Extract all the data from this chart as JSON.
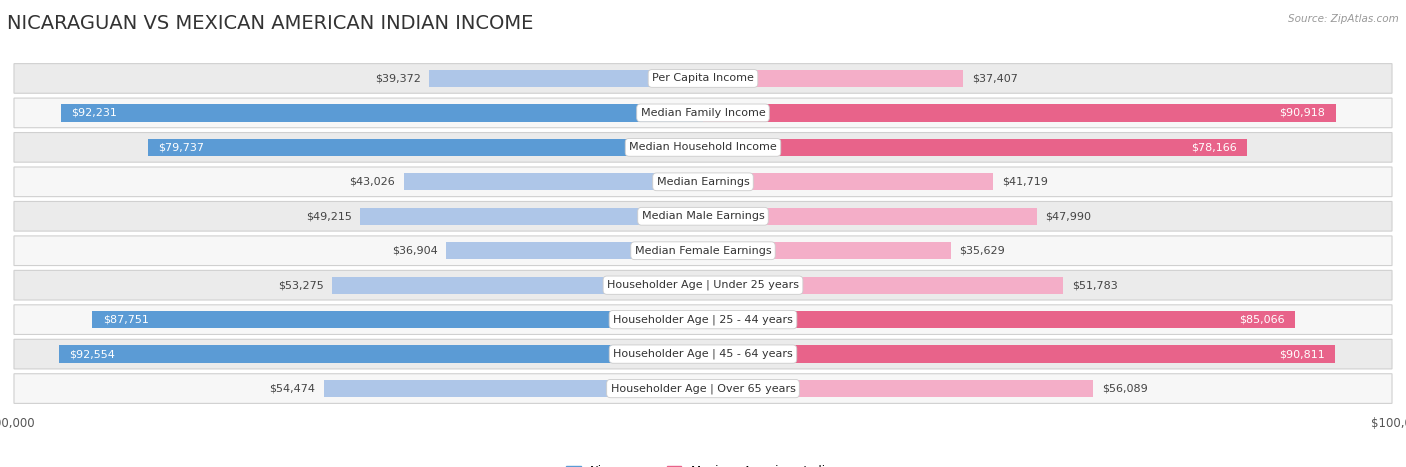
{
  "title": "NICARAGUAN VS MEXICAN AMERICAN INDIAN INCOME",
  "source": "Source: ZipAtlas.com",
  "categories": [
    "Per Capita Income",
    "Median Family Income",
    "Median Household Income",
    "Median Earnings",
    "Median Male Earnings",
    "Median Female Earnings",
    "Householder Age | Under 25 years",
    "Householder Age | 25 - 44 years",
    "Householder Age | 45 - 64 years",
    "Householder Age | Over 65 years"
  ],
  "nicaraguan_values": [
    39372,
    92231,
    79737,
    43026,
    49215,
    36904,
    53275,
    87751,
    92554,
    54474
  ],
  "mexican_ai_values": [
    37407,
    90918,
    78166,
    41719,
    47990,
    35629,
    51783,
    85066,
    90811,
    56089
  ],
  "nicaraguan_labels": [
    "$39,372",
    "$92,231",
    "$79,737",
    "$43,026",
    "$49,215",
    "$36,904",
    "$53,275",
    "$87,751",
    "$92,554",
    "$54,474"
  ],
  "mexican_ai_labels": [
    "$37,407",
    "$90,918",
    "$78,166",
    "$41,719",
    "$47,990",
    "$35,629",
    "$51,783",
    "$85,066",
    "$90,811",
    "$56,089"
  ],
  "max_value": 100000,
  "nicaraguan_color_light": "#aec6e8",
  "nicaraguan_color_dark": "#5b9bd5",
  "mexican_color_light": "#f4aec8",
  "mexican_color_dark": "#e8638a",
  "threshold_for_dark_label": 75000,
  "background_color": "#ffffff",
  "title_fontsize": 14,
  "label_fontsize": 8,
  "category_fontsize": 8,
  "axis_label_fontsize": 8.5,
  "row_bg_color": "#ebebeb",
  "row_bg_alt_color": "#f7f7f7"
}
